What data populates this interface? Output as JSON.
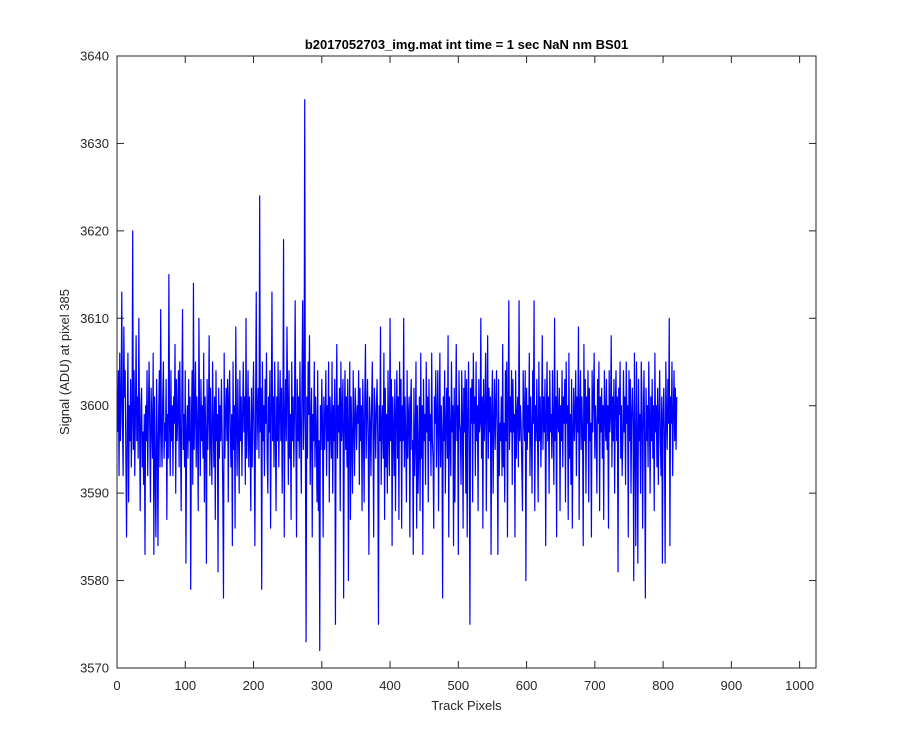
{
  "chart_data": {
    "type": "line",
    "title": "b2017052703_img.mat int time = 1 sec  NaN nm BS01",
    "xlabel": "Track Pixels",
    "ylabel": "Signal (ADU) at pixel 385",
    "xlim": [
      0,
      1024
    ],
    "ylim": [
      3570,
      3640
    ],
    "xticks": [
      0,
      100,
      200,
      300,
      400,
      500,
      600,
      700,
      800,
      900,
      1000
    ],
    "yticks": [
      3570,
      3580,
      3590,
      3600,
      3610,
      3620,
      3630,
      3640
    ],
    "grid": false,
    "legend": "none",
    "series": [
      {
        "color": "#0000ff",
        "start_x": 1,
        "x_step": 1,
        "values": [
          3597,
          3604,
          3592,
          3606,
          3596,
          3600,
          3613,
          3598,
          3592,
          3609,
          3601,
          3604,
          3594,
          3585,
          3598,
          3606,
          3589,
          3600,
          3596,
          3603,
          3593,
          3598,
          3620,
          3595,
          3604,
          3592,
          3599,
          3608,
          3596,
          3601,
          3594,
          3610,
          3598,
          3588,
          3600,
          3602,
          3593,
          3597,
          3591,
          3599,
          3583,
          3600,
          3596,
          3604,
          3592,
          3599,
          3605,
          3597,
          3589,
          3602,
          3598,
          3594,
          3606,
          3583,
          3601,
          3592,
          3585,
          3603,
          3596,
          3584,
          3599,
          3604,
          3593,
          3611,
          3597,
          3593,
          3601,
          3605,
          3594,
          3598,
          3596,
          3603,
          3587,
          3599,
          3594,
          3615,
          3598,
          3592,
          3604,
          3596,
          3600,
          3592,
          3601,
          3598,
          3607,
          3590,
          3603,
          3596,
          3599,
          3604,
          3593,
          3605,
          3597,
          3588,
          3601,
          3611,
          3595,
          3599,
          3593,
          3604,
          3582,
          3597,
          3600,
          3594,
          3603,
          3596,
          3601,
          3579,
          3598,
          3604,
          3591,
          3614,
          3595,
          3599,
          3605,
          3593,
          3601,
          3597,
          3588,
          3610,
          3599,
          3592,
          3603,
          3596,
          3600,
          3594,
          3606,
          3589,
          3601,
          3597,
          3582,
          3603,
          3595,
          3599,
          3608,
          3592,
          3602,
          3596,
          3591,
          3605,
          3598,
          3593,
          3601,
          3587,
          3604,
          3596,
          3599,
          3581,
          3602,
          3594,
          3600,
          3596,
          3603,
          3597,
          3590,
          3578,
          3606,
          3594,
          3599,
          3602,
          3596,
          3603,
          3589,
          3601,
          3604,
          3597,
          3593,
          3599,
          3584,
          3605,
          3595,
          3600,
          3586,
          3609,
          3598,
          3592,
          3603,
          3597,
          3590,
          3604,
          3596,
          3601,
          3592,
          3599,
          3605,
          3597,
          3601,
          3591,
          3610,
          3594,
          3598,
          3604,
          3593,
          3601,
          3596,
          3588,
          3602,
          3593,
          3599,
          3605,
          3596,
          3584,
          3600,
          3613,
          3595,
          3599,
          3602,
          3594,
          3624,
          3597,
          3602,
          3579,
          3605,
          3596,
          3600,
          3592,
          3603,
          3598,
          3606,
          3594,
          3590,
          3601,
          3597,
          3604,
          3586,
          3599,
          3613,
          3596,
          3601,
          3593,
          3605,
          3597,
          3588,
          3601,
          3596,
          3605,
          3593,
          3599,
          3604,
          3596,
          3602,
          3590,
          3599,
          3619,
          3585,
          3598,
          3603,
          3596,
          3609,
          3601,
          3591,
          3604,
          3594,
          3599,
          3587,
          3605,
          3596,
          3601,
          3593,
          3599,
          3612,
          3597,
          3585,
          3603,
          3596,
          3601,
          3594,
          3605,
          3597,
          3590,
          3603,
          3612,
          3595,
          3599,
          3635,
          3596,
          3573,
          3601,
          3594,
          3605,
          3599,
          3608,
          3591,
          3598,
          3602,
          3585,
          3599,
          3596,
          3605,
          3593,
          3601,
          3597,
          3589,
          3604,
          3588,
          3596,
          3572,
          3600,
          3595,
          3603,
          3598,
          3585,
          3601,
          3595,
          3599,
          3604,
          3592,
          3600,
          3596,
          3605,
          3589,
          3601,
          3598,
          3594,
          3605,
          3590,
          3600,
          3596,
          3603,
          3575,
          3599,
          3607,
          3594,
          3600,
          3597,
          3602,
          3588,
          3605,
          3596,
          3599,
          3603,
          3578,
          3598,
          3604,
          3595,
          3601,
          3593,
          3603,
          3580,
          3598,
          3605,
          3587,
          3601,
          3596,
          3590,
          3604,
          3598,
          3592,
          3602,
          3599,
          3595,
          3600,
          3598,
          3604,
          3591,
          3602,
          3596,
          3600,
          3588,
          3603,
          3598,
          3589,
          3601,
          3607,
          3594,
          3599,
          3603,
          3596,
          3583,
          3601,
          3598,
          3592,
          3600,
          3605,
          3597,
          3585,
          3602,
          3599,
          3594,
          3600,
          3603,
          3596,
          3575,
          3600,
          3596,
          3609,
          3591,
          3598,
          3600,
          3594,
          3606,
          3587,
          3602,
          3593,
          3599,
          3590,
          3604,
          3597,
          3592,
          3610,
          3596,
          3603,
          3584,
          3601,
          3597,
          3592,
          3603,
          3588,
          3599,
          3604,
          3594,
          3601,
          3587,
          3605,
          3596,
          3603,
          3586,
          3600,
          3596,
          3610,
          3593,
          3601,
          3596,
          3589,
          3604,
          3594,
          3599,
          3601,
          3585,
          3600,
          3603,
          3595,
          3596,
          3583,
          3602,
          3592,
          3596,
          3605,
          3586,
          3600,
          3590,
          3595,
          3601,
          3588,
          3606,
          3594,
          3600,
          3583,
          3603,
          3596,
          3599,
          3591,
          3605,
          3597,
          3601,
          3589,
          3603,
          3596,
          3599,
          3592,
          3606,
          3596,
          3594,
          3586,
          3601,
          3598,
          3604,
          3593,
          3599,
          3604,
          3588,
          3598,
          3606,
          3593,
          3600,
          3597,
          3578,
          3601,
          3596,
          3604,
          3590,
          3598,
          3602,
          3594,
          3608,
          3585,
          3601,
          3597,
          3592,
          3605,
          3597,
          3600,
          3584,
          3602,
          3589,
          3599,
          3607,
          3596,
          3600,
          3583,
          3604,
          3598,
          3597,
          3591,
          3604,
          3599,
          3586,
          3602,
          3597,
          3604,
          3590,
          3603,
          3585,
          3599,
          3605,
          3596,
          3575,
          3602,
          3598,
          3603,
          3589,
          3606,
          3598,
          3601,
          3592,
          3605,
          3596,
          3600,
          3588,
          3603,
          3597,
          3598,
          3610,
          3594,
          3601,
          3586,
          3603,
          3596,
          3599,
          3606,
          3588,
          3600,
          3608,
          3594,
          3602,
          3597,
          3601,
          3583,
          3600,
          3604,
          3590,
          3598,
          3603,
          3595,
          3600,
          3604,
          3596,
          3583,
          3603,
          3592,
          3598,
          3596,
          3601,
          3592,
          3607,
          3593,
          3598,
          3589,
          3604,
          3596,
          3605,
          3585,
          3600,
          3612,
          3595,
          3601,
          3597,
          3604,
          3591,
          3603,
          3597,
          3599,
          3585,
          3604,
          3594,
          3599,
          3601,
          3593,
          3612,
          3596,
          3600,
          3598,
          3593,
          3588,
          3604,
          3599,
          3596,
          3604,
          3580,
          3602,
          3595,
          3600,
          3597,
          3606,
          3592,
          3601,
          3597,
          3590,
          3604,
          3598,
          3612,
          3588,
          3600,
          3596,
          3603,
          3597,
          3589,
          3605,
          3596,
          3601,
          3593,
          3598,
          3608,
          3595,
          3601,
          3597,
          3603,
          3584,
          3599,
          3605,
          3596,
          3601,
          3590,
          3604,
          3597,
          3599,
          3594,
          3604,
          3597,
          3591,
          3610,
          3596,
          3601,
          3585,
          3604,
          3598,
          3597,
          3602,
          3588,
          3600,
          3596,
          3604,
          3593,
          3601,
          3598,
          3603,
          3589,
          3605,
          3598,
          3600,
          3587,
          3606,
          3594,
          3599,
          3591,
          3603,
          3586,
          3597,
          3602,
          3596,
          3599,
          3604,
          3592,
          3601,
          3597,
          3609,
          3587,
          3600,
          3604,
          3595,
          3601,
          3597,
          3584,
          3607,
          3596,
          3603,
          3590,
          3601,
          3598,
          3604,
          3589,
          3602,
          3596,
          3598,
          3585,
          3604,
          3597,
          3601,
          3606,
          3594,
          3600,
          3597,
          3590,
          3603,
          3598,
          3605,
          3588,
          3601,
          3597,
          3602,
          3594,
          3600,
          3587,
          3604,
          3599,
          3596,
          3603,
          3595,
          3600,
          3586,
          3604,
          3597,
          3599,
          3608,
          3593,
          3601,
          3596,
          3603,
          3590,
          3600,
          3604,
          3596,
          3601,
          3581,
          3602,
          3599,
          3605,
          3594,
          3600,
          3592,
          3596,
          3604,
          3597,
          3601,
          3591,
          3605,
          3598,
          3600,
          3585,
          3604,
          3596,
          3603,
          3590,
          3599,
          3602,
          3598,
          3580,
          3606,
          3596,
          3584,
          3605,
          3597,
          3582,
          3603,
          3596,
          3599,
          3590,
          3605,
          3601,
          3586,
          3598,
          3604,
          3596,
          3578,
          3602,
          3596,
          3600,
          3593,
          3605,
          3599,
          3590,
          3601,
          3596,
          3603,
          3594,
          3600,
          3588,
          3606,
          3597,
          3600,
          3593,
          3602,
          3591,
          3599,
          3604,
          3596,
          3592,
          3601,
          3582,
          3599,
          3602,
          3596,
          3582,
          3605,
          3599,
          3595,
          3603,
          3598,
          3610,
          3584,
          3601,
          3598,
          3605,
          3592,
          3599,
          3604,
          3596,
          3602,
          3595,
          3601
        ]
      }
    ]
  }
}
